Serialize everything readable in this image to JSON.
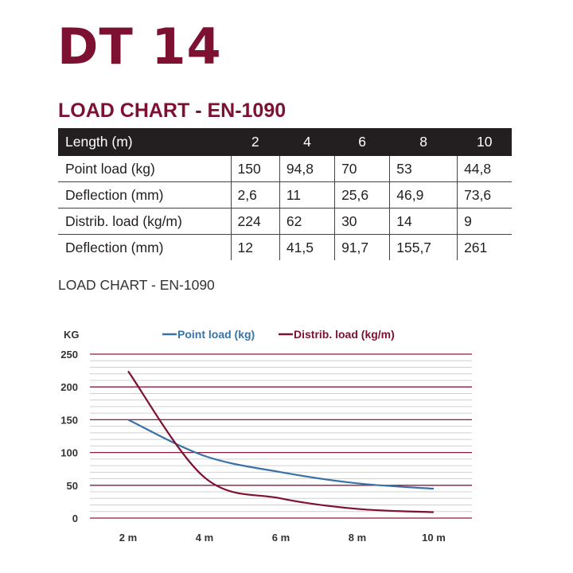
{
  "title": "DT 14",
  "table_heading": "LOAD CHART - EN-1090",
  "table": {
    "headers": [
      "Length (m)",
      "2",
      "4",
      "6",
      "8",
      "10"
    ],
    "rows": [
      [
        "Point load (kg)",
        "150",
        "94,8",
        "70",
        "53",
        "44,8"
      ],
      [
        "Deflection (mm)",
        "2,6",
        "11",
        "25,6",
        "46,9",
        "73,6"
      ],
      [
        "Distrib. load (kg/m)",
        "224",
        "62",
        "30",
        "14",
        "9"
      ],
      [
        "Deflection (mm)",
        "12",
        "41,5",
        "91,7",
        "155,7",
        "261"
      ]
    ]
  },
  "chart_subtitle": "LOAD CHART - EN-1090",
  "chart_data": {
    "type": "line",
    "ylabel": "KG",
    "categories": [
      "2 m",
      "4 m",
      "6 m",
      "8 m",
      "10 m"
    ],
    "x": [
      2,
      4,
      6,
      8,
      10
    ],
    "ylim": [
      0,
      250
    ],
    "yticks": [
      "0",
      "50",
      "100",
      "150",
      "200",
      "250"
    ],
    "grid": true,
    "legend": "top",
    "series": [
      {
        "name": "Point load (kg)",
        "values": [
          150,
          94.8,
          70,
          53,
          44.8
        ],
        "color": "#3a72a8"
      },
      {
        "name": "Distrib. load (kg/m)",
        "values": [
          224,
          62,
          30,
          14,
          9
        ],
        "color": "#7d1131"
      }
    ],
    "major_grid_color": "#8b1a3a",
    "minor_grid_color": "#d0d0d0"
  }
}
